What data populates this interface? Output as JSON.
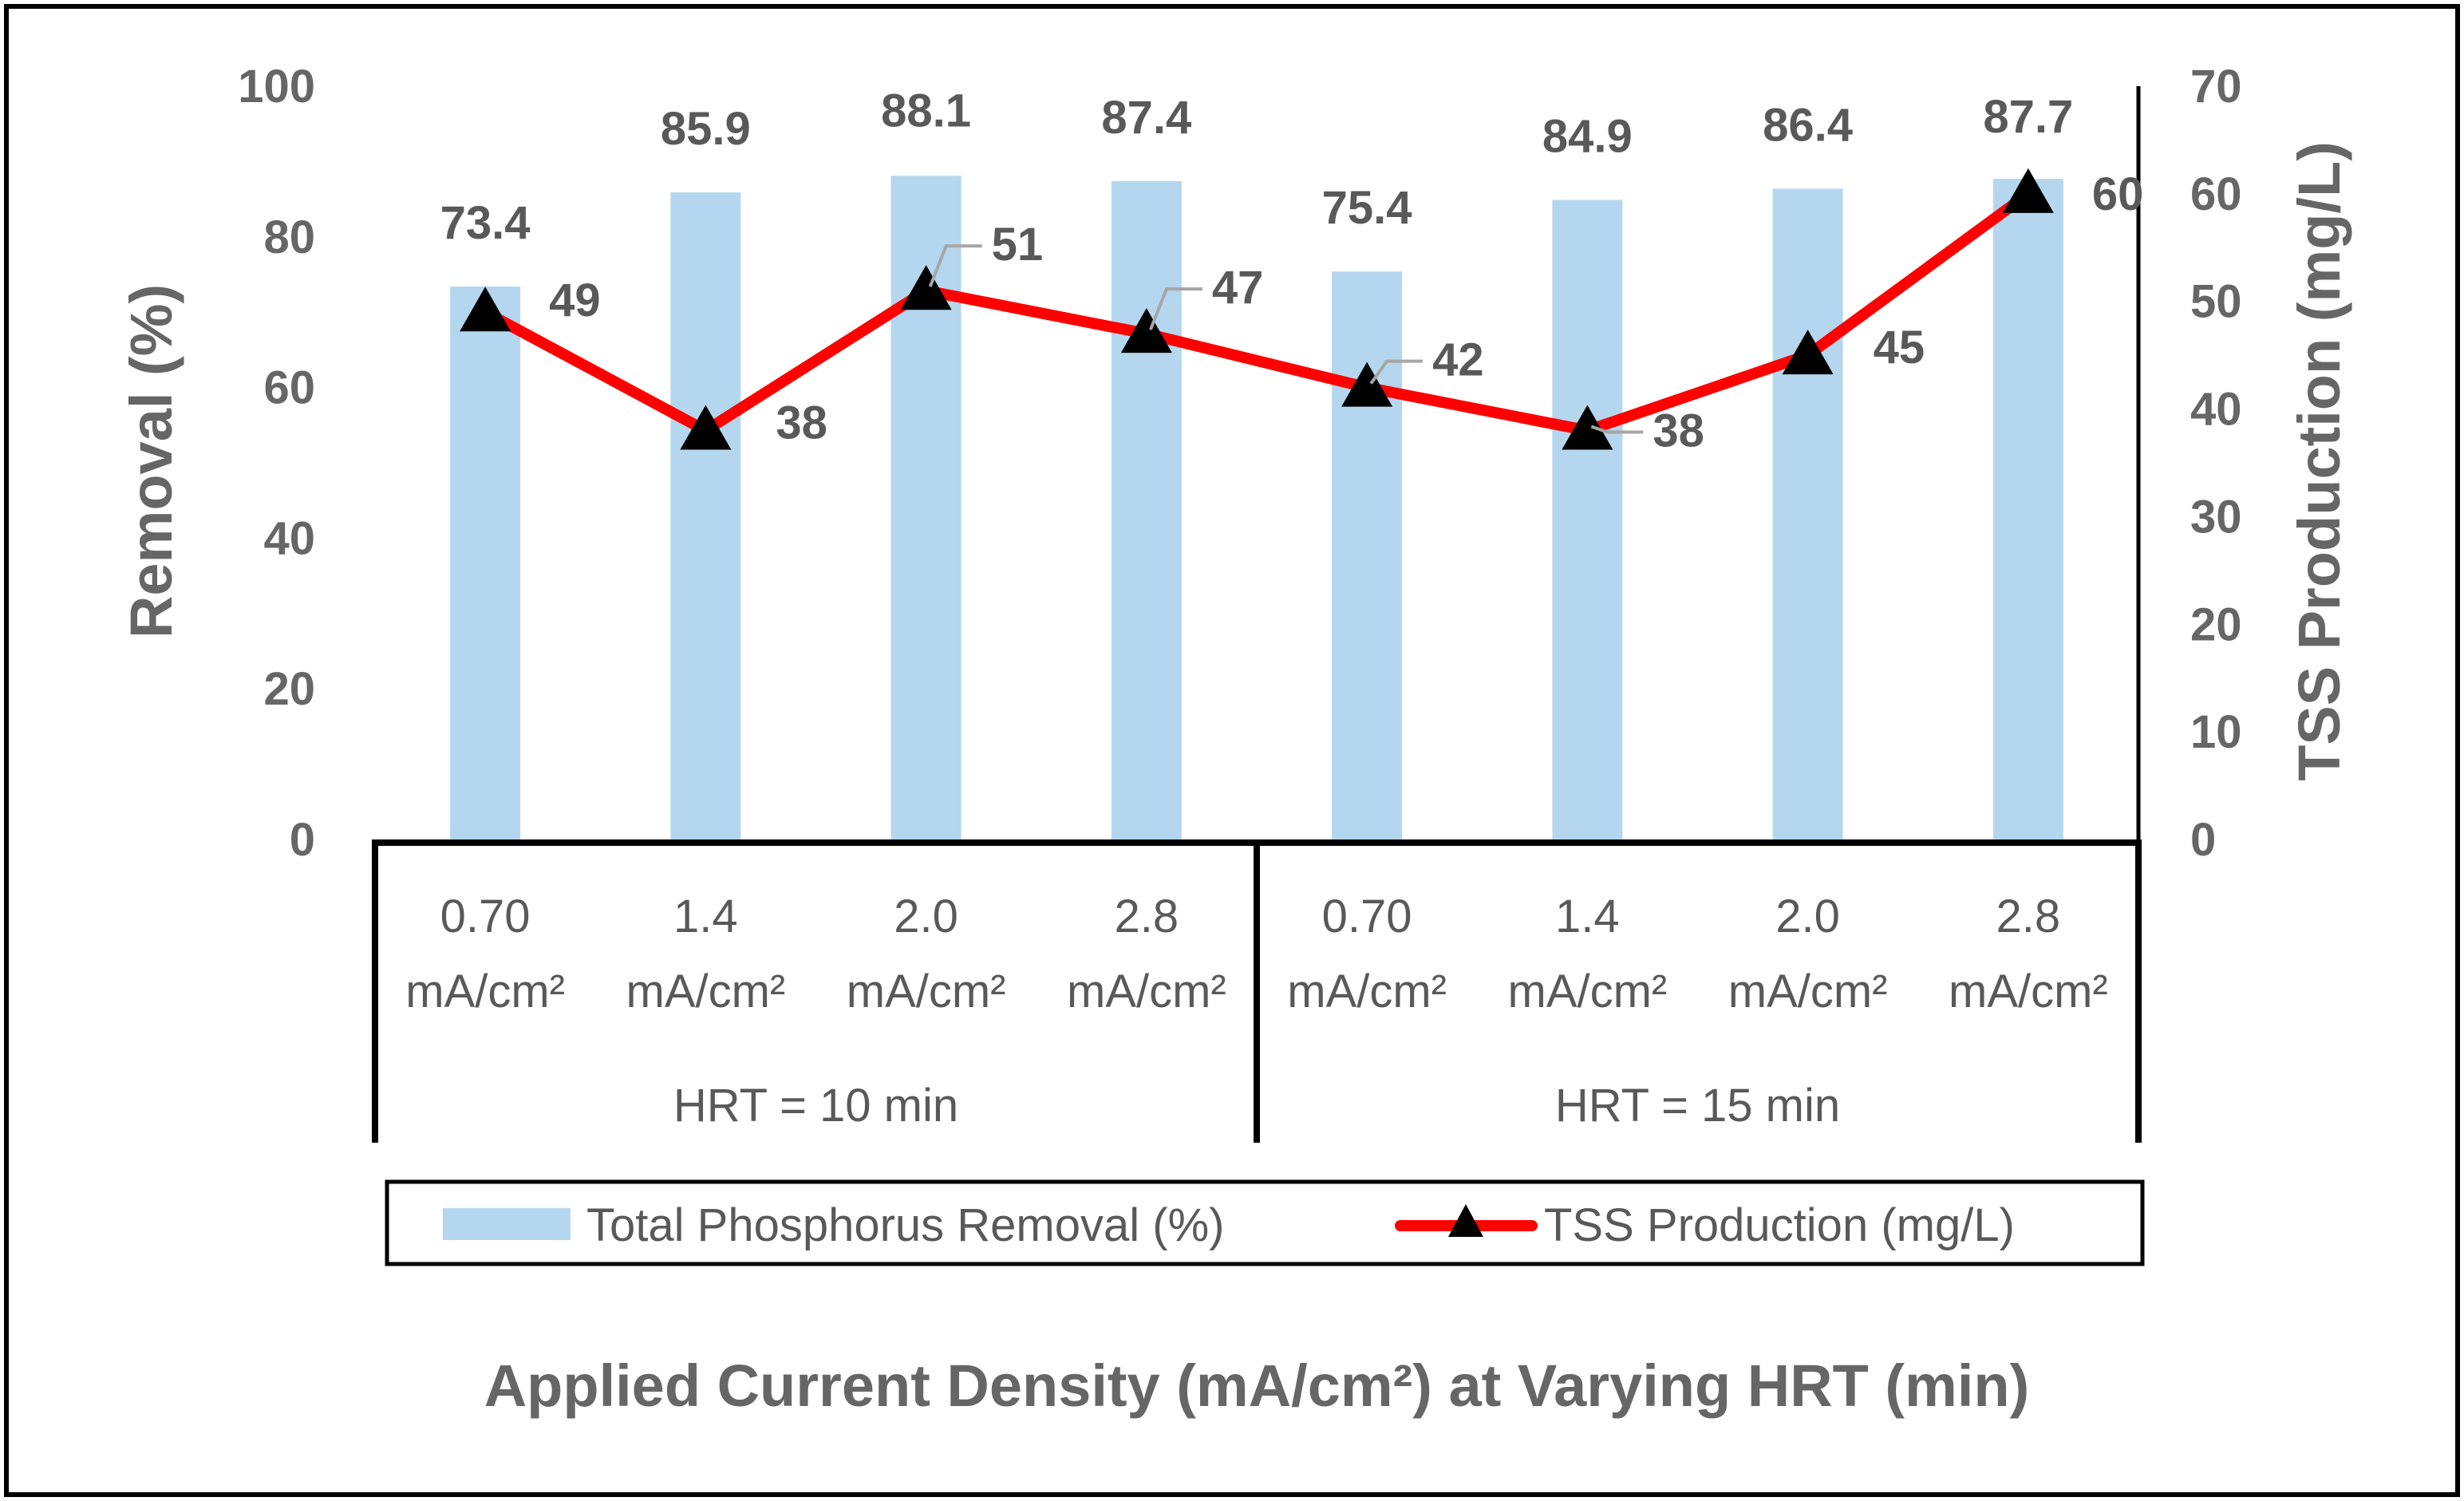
{
  "chart_data": {
    "type": "bar",
    "title": "",
    "xlabel": "Applied Current Density (mA/cm²) at Varying HRT (min)",
    "ylabel": "Removal (%)",
    "y2label": "TSS Production (mg/L)",
    "ylim": [
      0,
      100
    ],
    "y2lim": [
      0,
      70
    ],
    "yticks": [
      "0",
      "20",
      "40",
      "60",
      "80",
      "100"
    ],
    "y2ticks": [
      "0",
      "10",
      "20",
      "30",
      "40",
      "50",
      "60",
      "70"
    ],
    "categories": [
      {
        "value": "0.70",
        "unit": "mA/cm²"
      },
      {
        "value": "1.4",
        "unit": "mA/cm²"
      },
      {
        "value": "2.0",
        "unit": "mA/cm²"
      },
      {
        "value": "2.8",
        "unit": "mA/cm²"
      },
      {
        "value": "0.70",
        "unit": "mA/cm²"
      },
      {
        "value": "1.4",
        "unit": "mA/cm²"
      },
      {
        "value": "2.0",
        "unit": "mA/cm²"
      },
      {
        "value": "2.8",
        "unit": "mA/cm²"
      }
    ],
    "groups": [
      "HRT = 10 min",
      "HRT = 15 min"
    ],
    "series": [
      {
        "name": "Total Phosphorus Removal (%)",
        "kind": "bar",
        "axis": "left",
        "color": "#b4d7ef",
        "values": [
          73.4,
          85.9,
          88.1,
          87.4,
          75.4,
          84.9,
          86.4,
          87.7
        ],
        "labels": [
          "73.4",
          "85.9",
          "88.1",
          "87.4",
          "75.4",
          "84.9",
          "86.4",
          "87.7"
        ]
      },
      {
        "name": "TSS Production (mg/L)",
        "kind": "line",
        "axis": "right",
        "color": "#ff0000",
        "marker": "triangle",
        "values": [
          49,
          38,
          51,
          47,
          42,
          38,
          45,
          60
        ],
        "labels": [
          "49",
          "38",
          "51",
          "47",
          "42",
          "38",
          "45",
          "60"
        ]
      }
    ],
    "legend_position": "bottom"
  }
}
